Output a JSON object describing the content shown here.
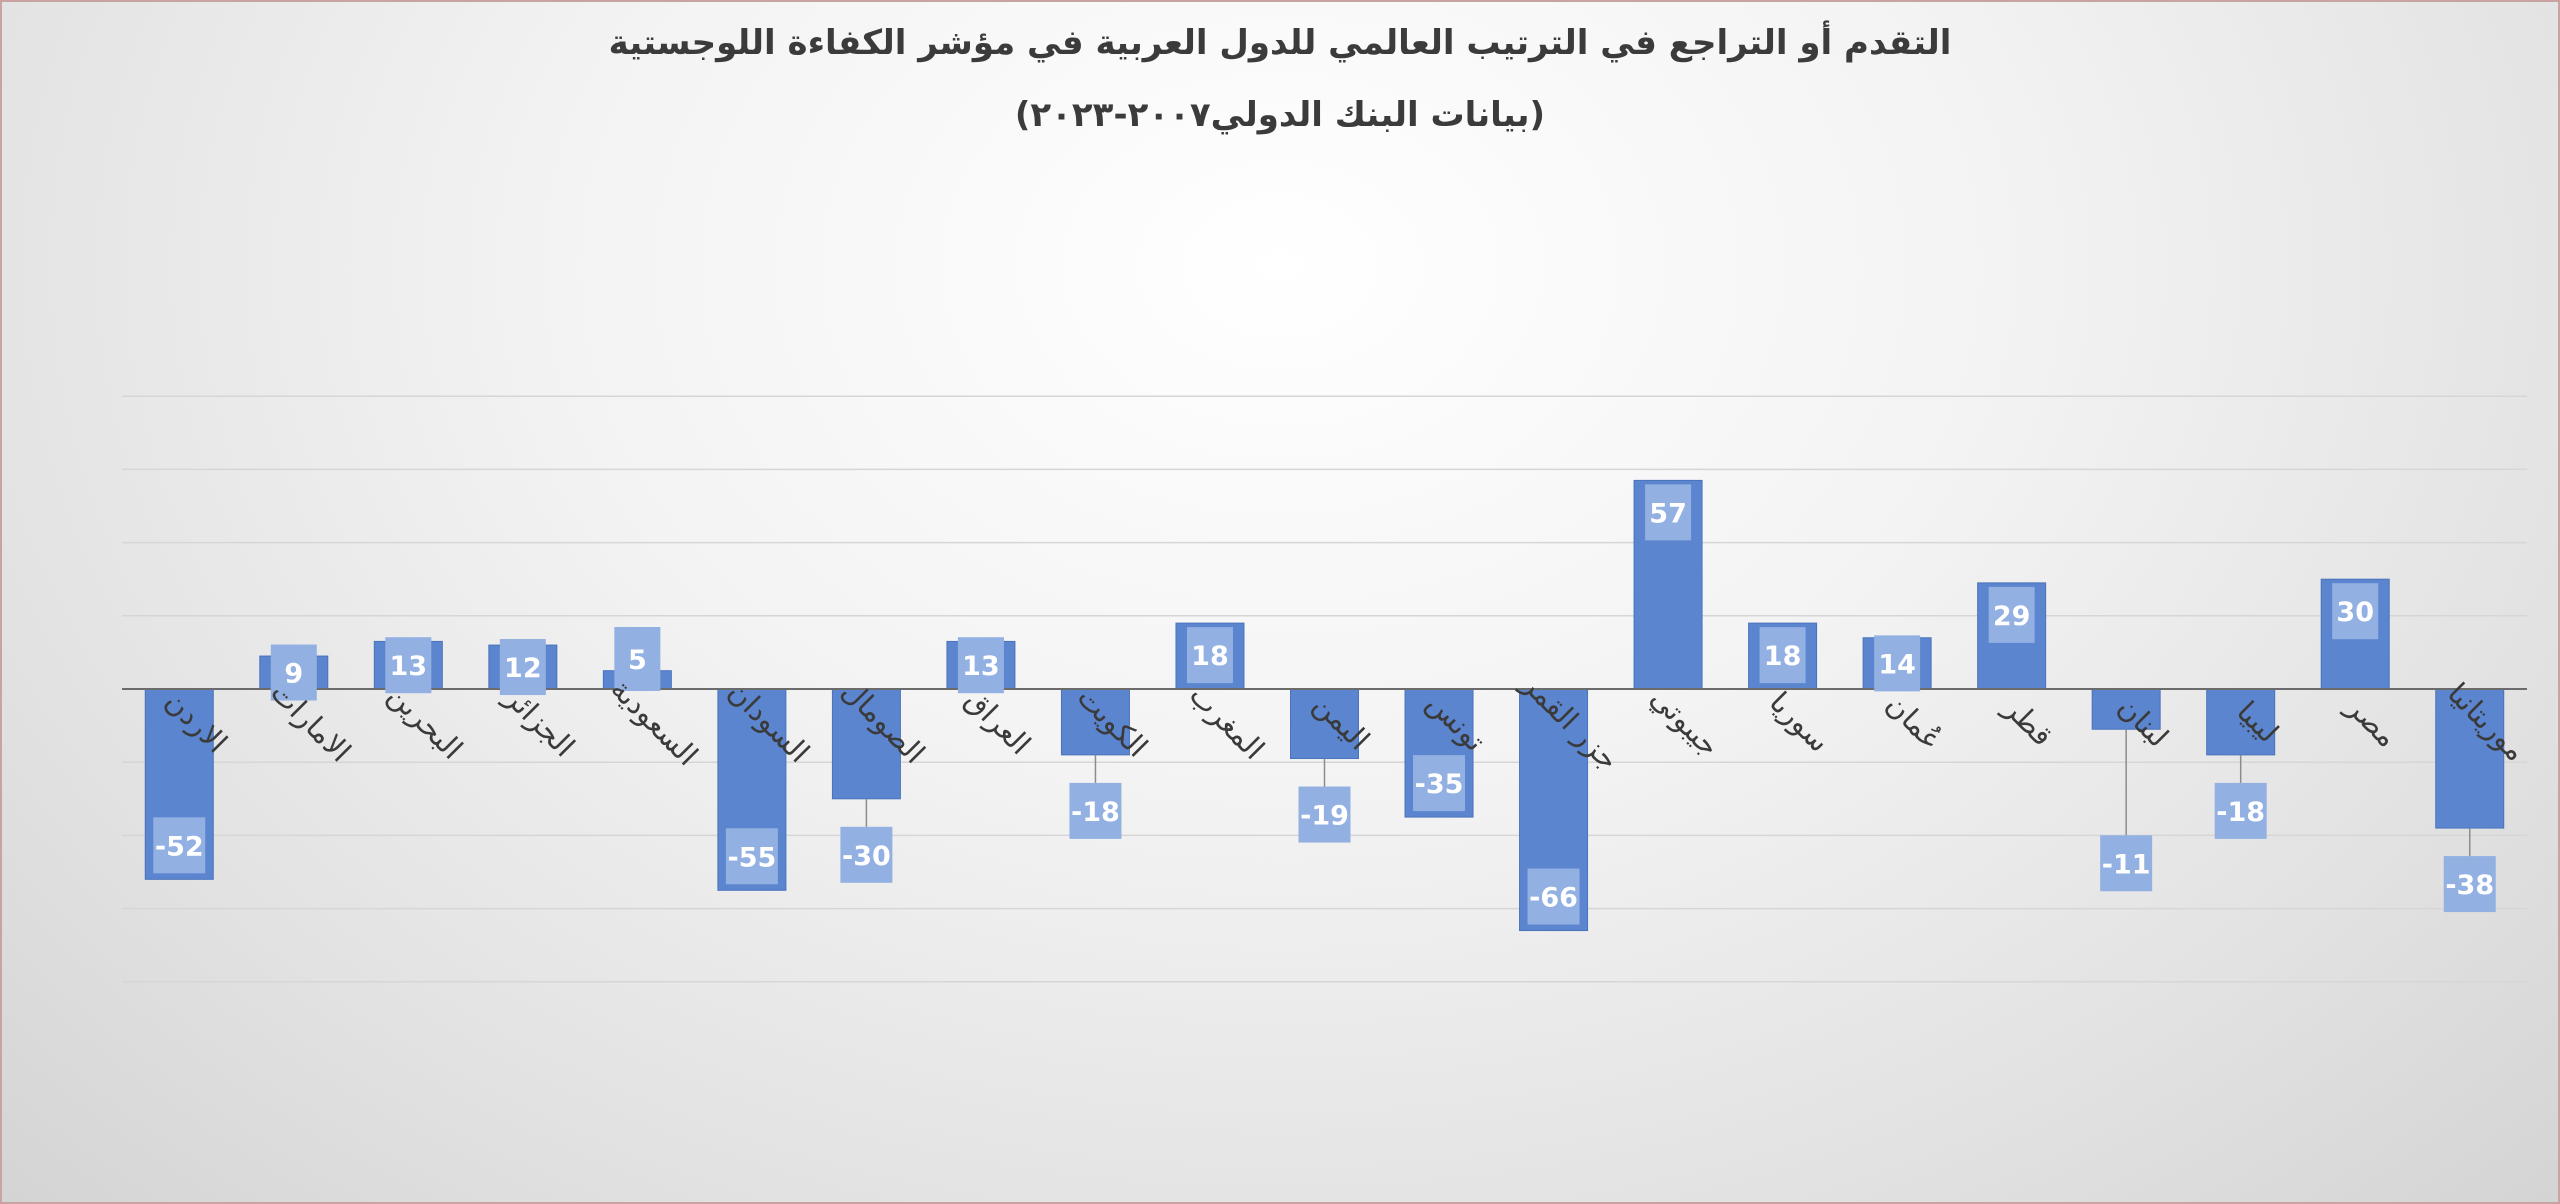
{
  "chart_data": {
    "type": "bar",
    "title": "التقدم أو التراجع في الترتيب العالمي للدول العربية في مؤشر الكفاءة اللوجستية",
    "subtitle": "(بيانات البنك الدولي٢٠٠٧-٢٠٢٣)",
    "categories": [
      "الاردن",
      "الامارات",
      "البحرين",
      "الجزائر",
      "السعودية",
      "السودان",
      "الصومال",
      "العراق",
      "الكويت",
      "المغرب",
      "اليمن",
      "تونس",
      "جزر القمر",
      "جيبوتي",
      "سوريا",
      "عُمان",
      "قطر",
      "لبنان",
      "ليبيا",
      "مصر",
      "موريتانيا"
    ],
    "values": [
      -52,
      9,
      13,
      12,
      5,
      -55,
      -30,
      13,
      -18,
      18,
      -19,
      -35,
      -66,
      57,
      18,
      14,
      29,
      -11,
      -18,
      30,
      -38
    ],
    "ylim": [
      -80,
      80
    ],
    "gridlines": true,
    "legend": "none",
    "colors": {
      "bar": "#5b85cf",
      "bar_edge": "#4a73bc",
      "label_box": "#93b0e2",
      "grid": "#d6d6d6",
      "axis": "#6b6b6b",
      "leader": "#8c8c8c"
    }
  }
}
